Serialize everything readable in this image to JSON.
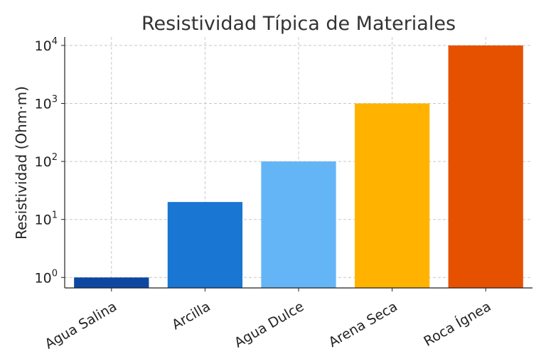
{
  "chart_data": {
    "type": "bar",
    "title": "Resistividad Típica de Materiales",
    "xlabel": "",
    "ylabel": "Resistividad (Ohm·m)",
    "yscale": "log",
    "ylim": [
      0.66,
      14000
    ],
    "grid": true,
    "categories": [
      "Agua Salina",
      "Arcilla",
      "Agua Dulce",
      "Arena Seca",
      "Roca Ígnea"
    ],
    "values": [
      1,
      20,
      100,
      1000,
      10000
    ],
    "colors": [
      "#0d47a1",
      "#1976d2",
      "#64b5f6",
      "#ffb300",
      "#e65100"
    ],
    "y_ticks": [
      {
        "value": 1,
        "base": "10",
        "exp": "0"
      },
      {
        "value": 10,
        "base": "10",
        "exp": "1"
      },
      {
        "value": 100,
        "base": "10",
        "exp": "2"
      },
      {
        "value": 1000,
        "base": "10",
        "exp": "3"
      },
      {
        "value": 10000,
        "base": "10",
        "exp": "4"
      }
    ]
  }
}
